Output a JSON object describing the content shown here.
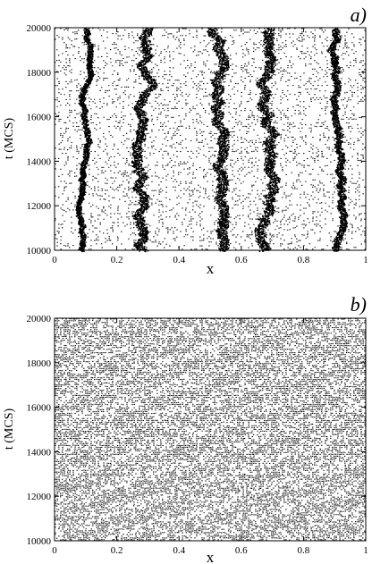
{
  "chart_data": [
    {
      "type": "scatter",
      "panel_label": "a)",
      "title": "",
      "xlabel": "x",
      "ylabel": "t (MCS)",
      "xlim": [
        0,
        1
      ],
      "ylim": [
        10000,
        20000
      ],
      "x_ticks": [
        0,
        0.2,
        0.4,
        0.6,
        0.8,
        1
      ],
      "x_tick_labels": [
        "0",
        "0.2",
        "0.4",
        "0.6",
        "0.8",
        "1"
      ],
      "y_ticks": [
        10000,
        12000,
        14000,
        16000,
        18000,
        20000
      ],
      "y_tick_labels": [
        "10000",
        "12000",
        "14000",
        "16000",
        "18000",
        "20000"
      ],
      "grid": false,
      "legend": "none",
      "point_color": "#000000",
      "background_density": 0.16,
      "dense_bands": [
        {
          "x_center": 0.1,
          "wander": 0.012
        },
        {
          "x_center": 0.3,
          "wander": 0.02
        },
        {
          "x_center": 0.5,
          "wander": 0.022
        },
        {
          "x_center": 0.7,
          "wander": 0.022
        },
        {
          "x_center": 0.9,
          "wander": 0.015
        }
      ]
    },
    {
      "type": "scatter",
      "panel_label": "b)",
      "title": "",
      "xlabel": "x",
      "ylabel": "t (MCS)",
      "xlim": [
        0,
        1
      ],
      "ylim": [
        10000,
        20000
      ],
      "x_ticks": [
        0,
        0.2,
        0.4,
        0.6,
        0.8,
        1
      ],
      "x_tick_labels": [
        "0",
        "0.2",
        "0.4",
        "0.6",
        "0.8",
        "1"
      ],
      "y_ticks": [
        10000,
        12000,
        14000,
        16000,
        18000,
        20000
      ],
      "y_tick_labels": [
        "10000",
        "12000",
        "14000",
        "16000",
        "18000",
        "20000"
      ],
      "grid": false,
      "legend": "none",
      "point_color": "#000000",
      "background_density": 0.55,
      "dense_bands": []
    }
  ]
}
